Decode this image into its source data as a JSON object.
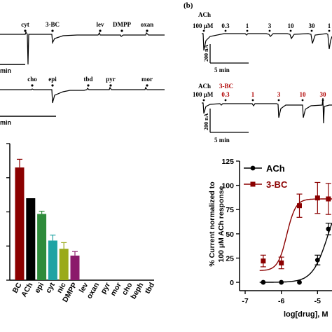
{
  "panel_b_label": "(b)",
  "trace_top_left": {
    "drugs": [
      "cyt",
      "3-BC",
      "lev",
      "DMPP",
      "oxan"
    ],
    "scale_time": "min"
  },
  "trace_mid_left": {
    "drugs": [
      "cho",
      "epi",
      "tbd",
      "pyr",
      "mor"
    ],
    "scale_time": "min"
  },
  "trace_top_right": {
    "ach_label": "ACh",
    "ach_conc": "100 µM",
    "conc_labels": [
      "0.3",
      "1",
      "3",
      "10",
      "30",
      "1"
    ],
    "scale_current": "200 nA",
    "scale_time": "5 min"
  },
  "trace_mid_right": {
    "ach_label": "ACh",
    "ach_conc": "100 µM",
    "bc_label": "3-BC",
    "conc_labels": [
      "0.3",
      "1",
      "3",
      "10",
      "30"
    ],
    "scale_current": "200 nA",
    "scale_time": "5 min"
  },
  "colors": {
    "ach": "#000000",
    "bc": "#8b0000",
    "epi": "#2e8b3a",
    "cyt": "#1fa3a3",
    "nic": "#9aaa1a",
    "dmpp": "#8b1a6b",
    "red_text": "#b00000"
  },
  "chart_data": [
    {
      "type": "bar",
      "categories": [
        "3-BC",
        "ACh",
        "epi",
        "cyt",
        "nic",
        "DMPP",
        "lev",
        "oxan",
        "pyr",
        "mor",
        "cho",
        "beph",
        "tbd"
      ],
      "tick_labels": [
        "BC",
        "ACh",
        "epi",
        "cyt",
        "nic",
        "DMPP",
        "lev",
        "oxan",
        "pyr",
        "mor",
        "cho",
        "beph",
        "tbd"
      ],
      "values": [
        165,
        120,
        97,
        58,
        46,
        36,
        0,
        0,
        0,
        0,
        0,
        0,
        0
      ],
      "errors": [
        12,
        0,
        4,
        8,
        9,
        6,
        0,
        0,
        0,
        0,
        0,
        0,
        0
      ],
      "colors": [
        "#8b0000",
        "#000000",
        "#2e8b3a",
        "#1fa3a3",
        "#9aaa1a",
        "#8b1a6b",
        "#000000",
        "#000000",
        "#000000",
        "#000000",
        "#000000",
        "#000000",
        "#000000"
      ],
      "ylim": [
        0,
        200
      ]
    },
    {
      "type": "scatter",
      "xlabel": "log[drug], M",
      "ylabel": "% Current normalized to 100 µM ACh response",
      "xticks": [
        -7,
        -6,
        -5
      ],
      "yticks": [
        0,
        25,
        50,
        75,
        100,
        125
      ],
      "xlim": [
        -7,
        -4.6
      ],
      "ylim": [
        -5,
        125
      ],
      "legend_position": "top-left",
      "series": [
        {
          "name": "ACh",
          "color": "#000000",
          "marker": "circle",
          "x": [
            -6.5,
            -6.0,
            -5.5,
            -5.0,
            -4.7
          ],
          "y": [
            0,
            0,
            0,
            23,
            55
          ],
          "err": [
            0,
            0,
            0,
            5,
            6
          ],
          "fit": {
            "bottom": 0,
            "top": 100,
            "logec50": -4.7,
            "hill": 2.0
          }
        },
        {
          "name": "3-BC",
          "color": "#8b0000",
          "marker": "square",
          "x": [
            -6.5,
            -6.0,
            -5.5,
            -5.0,
            -4.7
          ],
          "y": [
            22,
            20,
            79,
            87,
            86
          ],
          "err": [
            6,
            6,
            12,
            16,
            16
          ],
          "fit": {
            "bottom": 12,
            "top": 86,
            "logec50": -5.85,
            "hill": 3.5
          }
        }
      ]
    }
  ]
}
